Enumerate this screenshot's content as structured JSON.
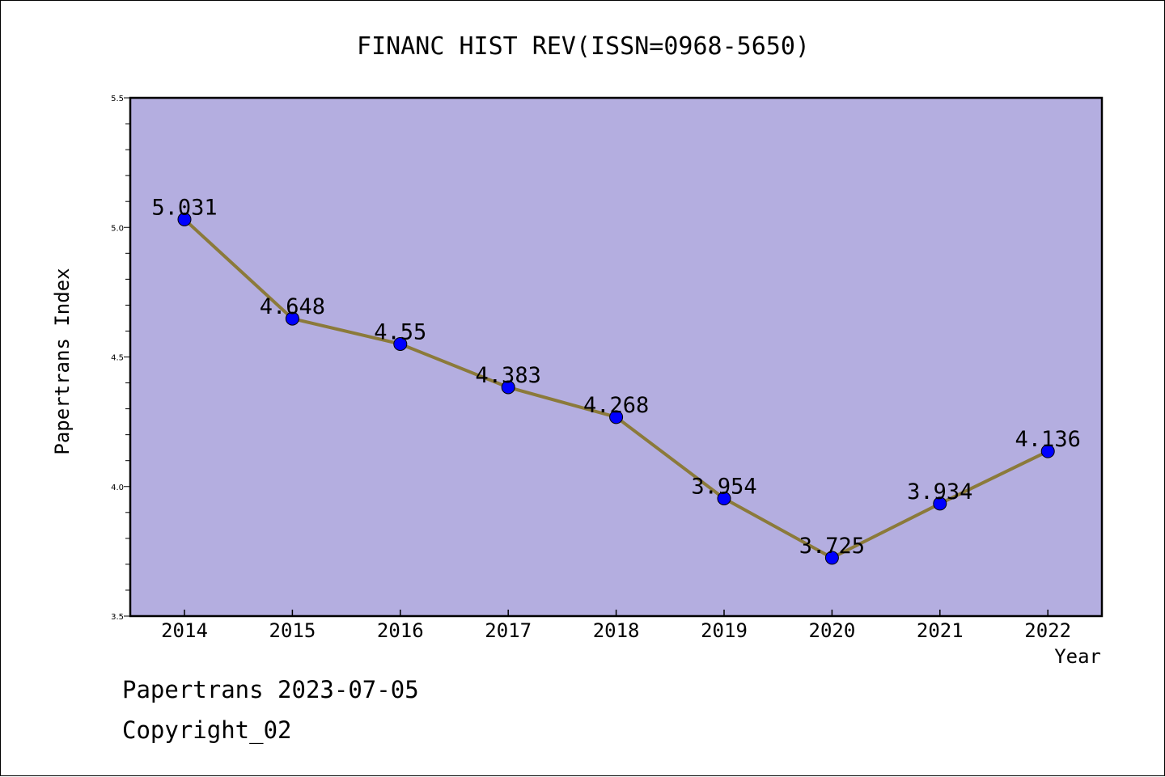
{
  "chart_data": {
    "type": "line",
    "title": "FINANC HIST REV(ISSN=0968-5650)",
    "xlabel": "Year",
    "ylabel": "Papertrans Index",
    "categories": [
      "2014",
      "2015",
      "2016",
      "2017",
      "2018",
      "2019",
      "2020",
      "2021",
      "2022"
    ],
    "series": [
      {
        "values": [
          5.031,
          4.648,
          4.55,
          4.383,
          4.268,
          3.954,
          3.725,
          3.934,
          4.136
        ],
        "data_labels": [
          "5.031",
          "4.648",
          "4.55",
          "4.383",
          "4.268",
          "3.954",
          "3.725",
          "3.934",
          "4.136"
        ],
        "line_color": "#8b7a3a",
        "marker_color": "#0000ff"
      }
    ],
    "ylim": [
      3.5,
      5.5
    ],
    "yticks": [
      "3.5",
      "4.0",
      "4.5",
      "5.0",
      "5.5"
    ],
    "grid": false,
    "plot_background": "#b4aee0"
  },
  "footer": {
    "source": "Papertrans 2023-07-05",
    "copyright": "Copyright_02"
  }
}
